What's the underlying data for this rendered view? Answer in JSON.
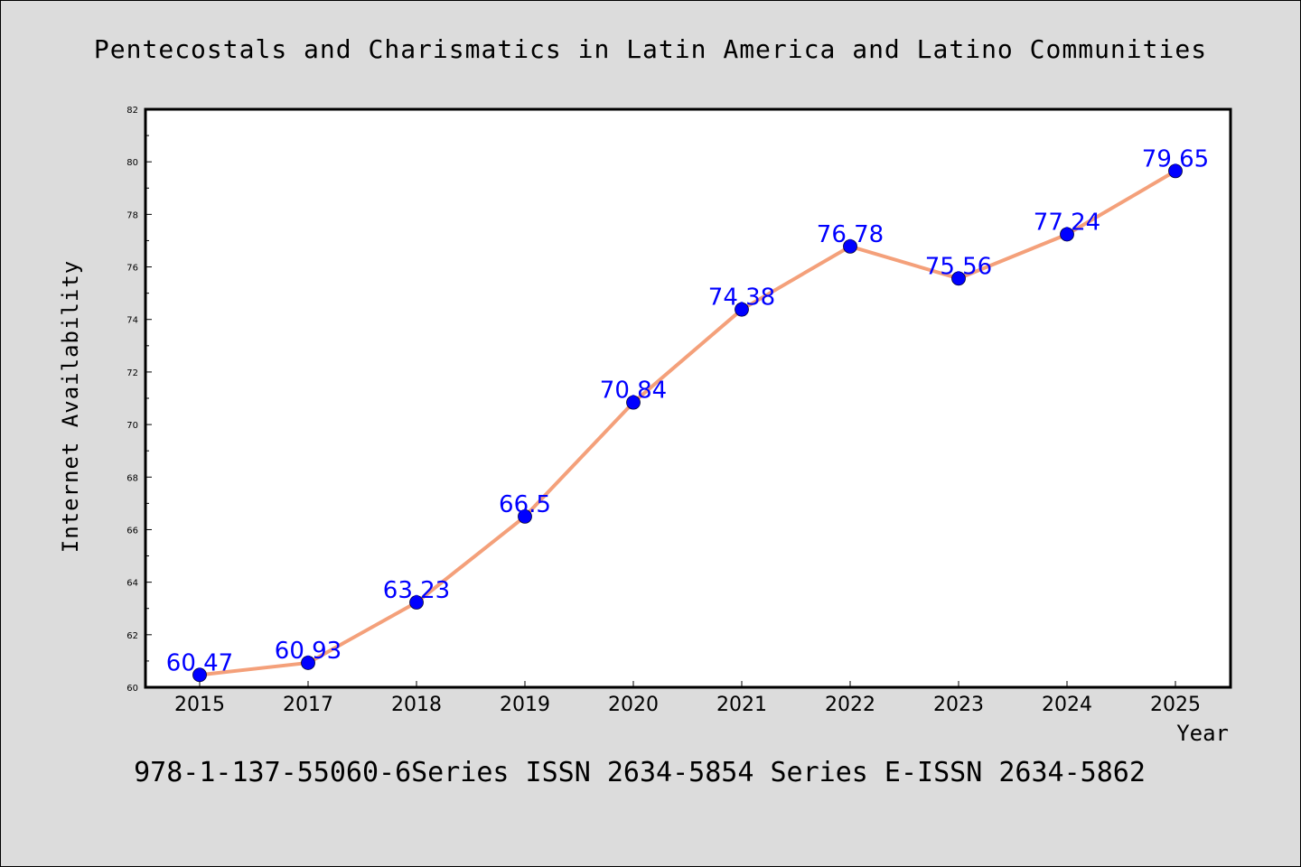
{
  "chart_data": {
    "type": "line",
    "title": "Pentecostals and Charismatics in Latin America and Latino Communities",
    "xlabel": "Year",
    "ylabel": "Internet Availability",
    "categories": [
      "2015",
      "2017",
      "2018",
      "2019",
      "2020",
      "2021",
      "2022",
      "2023",
      "2024",
      "2025"
    ],
    "series": [
      {
        "values": [
          60.47,
          60.93,
          63.23,
          66.5,
          70.84,
          74.38,
          76.78,
          75.56,
          77.24,
          79.65
        ],
        "data_labels": [
          "60.47",
          "60.93",
          "63.23",
          "66.5",
          "70.84",
          "74.38",
          "76.78",
          "75.56",
          "77.24",
          "79.65"
        ],
        "line_color": "#f4a07a",
        "marker_color": "#0000ff"
      }
    ],
    "ylim": [
      60,
      82
    ],
    "yticks": [
      "60",
      "62",
      "64",
      "66",
      "68",
      "70",
      "72",
      "74",
      "76",
      "78",
      "80",
      "82"
    ],
    "grid": false,
    "legend": "none"
  },
  "footer": {
    "text": "978-1-137-55060-6Series ISSN 2634-5854 Series E-ISSN 2634-5862"
  },
  "colors": {
    "background": "#dcdcdc",
    "plot_area": "#ffffff",
    "line": "#f4a07a",
    "marker": "#0000ff",
    "data_label": "#0000ff"
  }
}
